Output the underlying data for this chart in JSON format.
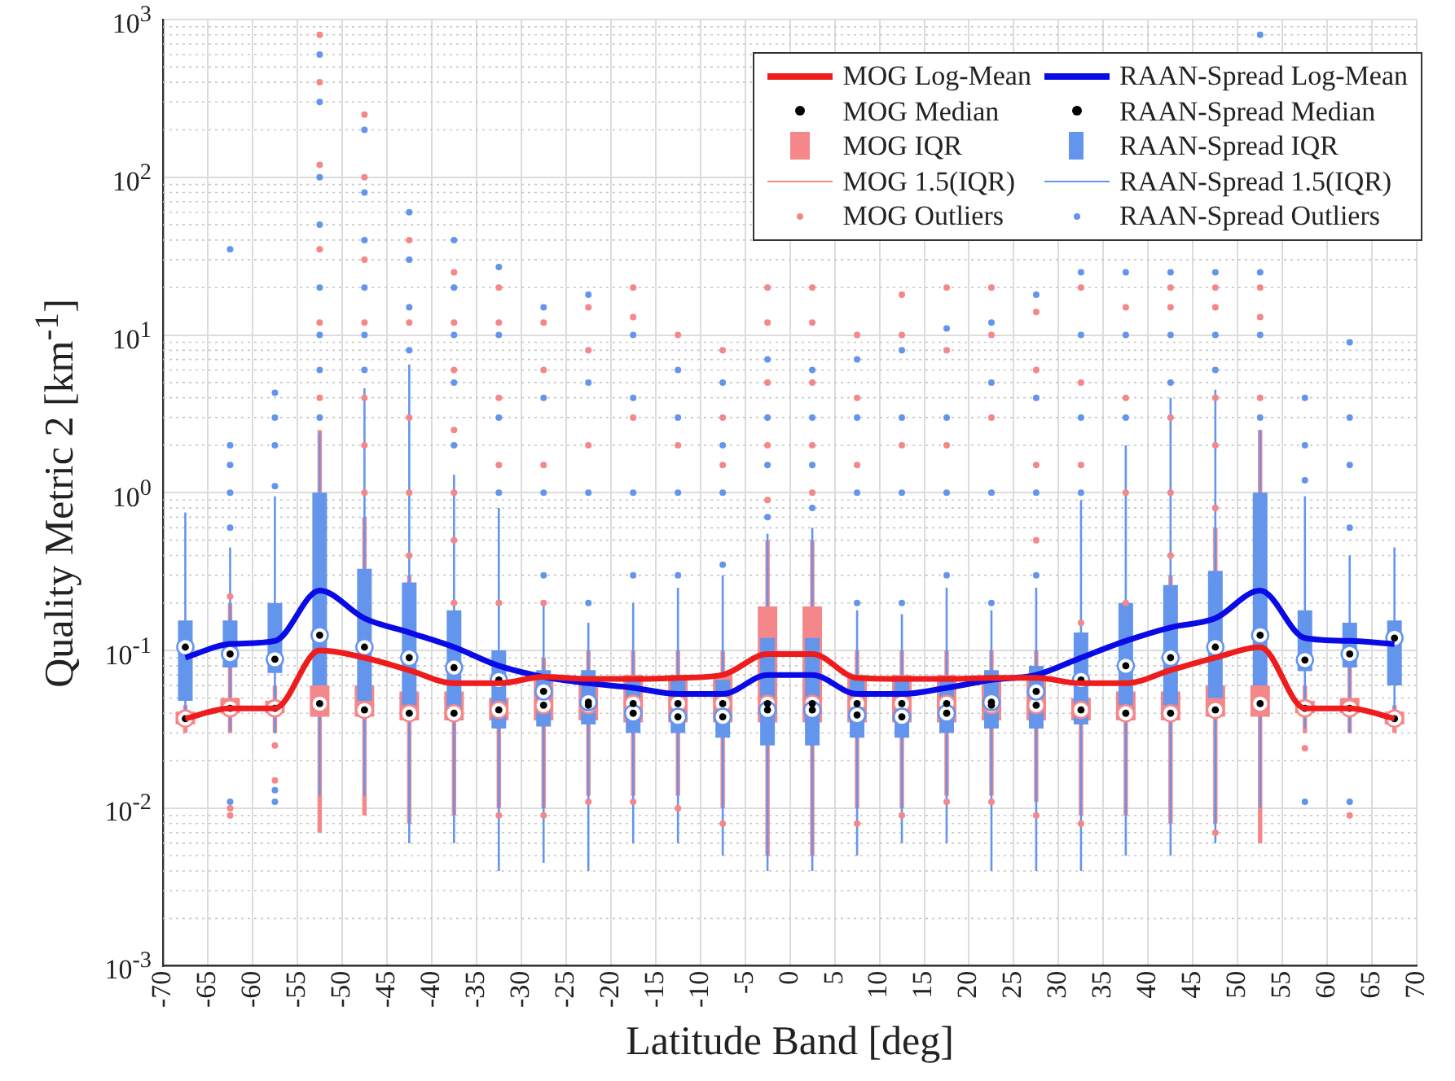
{
  "chart_data": {
    "type": "box",
    "xlabel": "Latitude Band [deg]",
    "ylabel": "Quality Metric 2 [km$^{-1}$]",
    "x": [
      -67.5,
      -62.5,
      -57.5,
      -52.5,
      -47.5,
      -42.5,
      -37.5,
      -32.5,
      -27.5,
      -22.5,
      -17.5,
      -12.5,
      -7.5,
      -2.5,
      2.5,
      7.5,
      12.5,
      17.5,
      22.5,
      27.5,
      32.5,
      37.5,
      42.5,
      47.5,
      52.5,
      57.5,
      62.5,
      67.5
    ],
    "xlim": [
      -70,
      70
    ],
    "xticks": [
      -70,
      -65,
      -60,
      -55,
      -50,
      -45,
      -40,
      -35,
      -30,
      -25,
      -20,
      -15,
      -10,
      -5,
      0,
      5,
      10,
      15,
      20,
      25,
      30,
      35,
      40,
      45,
      50,
      55,
      60,
      65,
      70
    ],
    "log": "y",
    "ylim": [
      0.001,
      1000
    ],
    "yticks": [
      {
        "value": 0.001,
        "label": "10$^{-3}$"
      },
      {
        "value": 0.01,
        "label": "10$^{-2}$"
      },
      {
        "value": 0.1,
        "label": "10$^{-1}$"
      },
      {
        "value": 1,
        "label": "10$^{0}$"
      },
      {
        "value": 10,
        "label": "10$^{1}$"
      },
      {
        "value": 100,
        "label": "10$^{2}$"
      },
      {
        "value": 1000,
        "label": "10$^{3}$"
      }
    ],
    "grid": true,
    "legend": "top right",
    "annotations": [
      "MOG Median",
      "RAAN-Spread Median",
      "MOG 1.5(IQR)",
      "RAAN-Spread 1.5(IQR)"
    ],
    "series": [
      {
        "name": "MOG Log-Mean",
        "type": "line",
        "color": "#ee1c1c",
        "values": [
          0.037,
          0.043,
          0.043,
          0.1,
          0.09,
          0.075,
          0.062,
          0.062,
          0.068,
          0.066,
          0.066,
          0.067,
          0.07,
          0.095,
          0.095,
          0.067,
          0.066,
          0.066,
          0.067,
          0.067,
          0.062,
          0.062,
          0.075,
          0.09,
          0.105,
          0.043,
          0.043,
          0.037
        ]
      },
      {
        "name": "RAAN-Spread Log-Mean",
        "type": "line",
        "color": "#0a0ae6",
        "values": [
          0.09,
          0.11,
          0.115,
          0.24,
          0.16,
          0.13,
          0.105,
          0.08,
          0.068,
          0.062,
          0.058,
          0.053,
          0.053,
          0.07,
          0.07,
          0.053,
          0.053,
          0.058,
          0.065,
          0.07,
          0.09,
          0.115,
          0.14,
          0.16,
          0.24,
          0.12,
          0.115,
          0.11
        ]
      },
      {
        "name": "MOG IQR",
        "type": "box",
        "color": "#f4878a",
        "boxes": [
          {
            "low": 0.03,
            "q1": 0.034,
            "median": 0.037,
            "q3": 0.041,
            "high": 0.045
          },
          {
            "low": 0.03,
            "q1": 0.04,
            "median": 0.043,
            "q3": 0.05,
            "high": 0.2
          },
          {
            "low": 0.03,
            "q1": 0.04,
            "median": 0.043,
            "q3": 0.048,
            "high": 0.06
          },
          {
            "low": 0.007,
            "q1": 0.038,
            "median": 0.046,
            "q3": 0.06,
            "high": 2.5
          },
          {
            "low": 0.009,
            "q1": 0.038,
            "median": 0.042,
            "q3": 0.06,
            "high": 0.7
          },
          {
            "low": 0.008,
            "q1": 0.036,
            "median": 0.04,
            "q3": 0.055,
            "high": 0.3
          },
          {
            "low": 0.009,
            "q1": 0.036,
            "median": 0.04,
            "q3": 0.055,
            "high": 0.15
          },
          {
            "low": 0.01,
            "q1": 0.036,
            "median": 0.042,
            "q3": 0.05,
            "high": 0.06
          },
          {
            "low": 0.01,
            "q1": 0.036,
            "median": 0.045,
            "q3": 0.065,
            "high": 0.09
          },
          {
            "low": 0.012,
            "q1": 0.036,
            "median": 0.045,
            "q3": 0.065,
            "high": 0.1
          },
          {
            "low": 0.012,
            "q1": 0.035,
            "median": 0.046,
            "q3": 0.07,
            "high": 0.1
          },
          {
            "low": 0.012,
            "q1": 0.035,
            "median": 0.046,
            "q3": 0.07,
            "high": 0.1
          },
          {
            "low": 0.01,
            "q1": 0.035,
            "median": 0.046,
            "q3": 0.07,
            "high": 0.1
          },
          {
            "low": 0.005,
            "q1": 0.035,
            "median": 0.046,
            "q3": 0.19,
            "high": 0.5
          },
          {
            "low": 0.005,
            "q1": 0.035,
            "median": 0.046,
            "q3": 0.19,
            "high": 0.5
          },
          {
            "low": 0.01,
            "q1": 0.035,
            "median": 0.046,
            "q3": 0.07,
            "high": 0.1
          },
          {
            "low": 0.01,
            "q1": 0.035,
            "median": 0.046,
            "q3": 0.07,
            "high": 0.1
          },
          {
            "low": 0.012,
            "q1": 0.035,
            "median": 0.046,
            "q3": 0.07,
            "high": 0.1
          },
          {
            "low": 0.012,
            "q1": 0.036,
            "median": 0.045,
            "q3": 0.065,
            "high": 0.1
          },
          {
            "low": 0.011,
            "q1": 0.036,
            "median": 0.045,
            "q3": 0.065,
            "high": 0.1
          },
          {
            "low": 0.009,
            "q1": 0.036,
            "median": 0.042,
            "q3": 0.05,
            "high": 0.08
          },
          {
            "low": 0.009,
            "q1": 0.036,
            "median": 0.04,
            "q3": 0.055,
            "high": 0.15
          },
          {
            "low": 0.008,
            "q1": 0.036,
            "median": 0.04,
            "q3": 0.055,
            "high": 0.3
          },
          {
            "low": 0.008,
            "q1": 0.038,
            "median": 0.042,
            "q3": 0.06,
            "high": 0.6
          },
          {
            "low": 0.006,
            "q1": 0.038,
            "median": 0.046,
            "q3": 0.06,
            "high": 2.5
          },
          {
            "low": 0.03,
            "q1": 0.04,
            "median": 0.043,
            "q3": 0.048,
            "high": 0.06
          },
          {
            "low": 0.03,
            "q1": 0.04,
            "median": 0.043,
            "q3": 0.05,
            "high": 0.08
          },
          {
            "low": 0.03,
            "q1": 0.034,
            "median": 0.037,
            "q3": 0.041,
            "high": 0.045
          }
        ]
      },
      {
        "name": "RAAN-Spread IQR",
        "type": "box",
        "color": "#6495ed",
        "boxes": [
          {
            "low": 0.034,
            "q1": 0.048,
            "median": 0.105,
            "q3": 0.155,
            "high": 0.75
          },
          {
            "low": 0.031,
            "q1": 0.078,
            "median": 0.095,
            "q3": 0.155,
            "high": 0.45
          },
          {
            "low": 0.03,
            "q1": 0.072,
            "median": 0.088,
            "q3": 0.2,
            "high": 0.95
          },
          {
            "low": 0.012,
            "q1": 0.06,
            "median": 0.125,
            "q3": 1,
            "high": 2.4
          },
          {
            "low": 0.012,
            "q1": 0.048,
            "median": 0.105,
            "q3": 0.33,
            "high": 4.6
          },
          {
            "low": 0.006,
            "q1": 0.045,
            "median": 0.09,
            "q3": 0.27,
            "high": 6.5
          },
          {
            "low": 0.006,
            "q1": 0.036,
            "median": 0.078,
            "q3": 0.18,
            "high": 1.3
          },
          {
            "low": 0.004,
            "q1": 0.032,
            "median": 0.065,
            "q3": 0.1,
            "high": 0.8
          },
          {
            "low": 0.0045,
            "q1": 0.033,
            "median": 0.055,
            "q3": 0.075,
            "high": 0.2
          },
          {
            "low": 0.004,
            "q1": 0.034,
            "median": 0.047,
            "q3": 0.075,
            "high": 0.15
          },
          {
            "low": 0.006,
            "q1": 0.03,
            "median": 0.04,
            "q3": 0.065,
            "high": 0.2
          },
          {
            "low": 0.006,
            "q1": 0.03,
            "median": 0.038,
            "q3": 0.065,
            "high": 0.25
          },
          {
            "low": 0.005,
            "q1": 0.028,
            "median": 0.038,
            "q3": 0.065,
            "high": 0.3
          },
          {
            "low": 0.004,
            "q1": 0.025,
            "median": 0.042,
            "q3": 0.12,
            "high": 0.55
          },
          {
            "low": 0.004,
            "q1": 0.025,
            "median": 0.042,
            "q3": 0.12,
            "high": 0.6
          },
          {
            "low": 0.005,
            "q1": 0.028,
            "median": 0.039,
            "q3": 0.065,
            "high": 0.18
          },
          {
            "low": 0.006,
            "q1": 0.028,
            "median": 0.038,
            "q3": 0.065,
            "high": 0.17
          },
          {
            "low": 0.006,
            "q1": 0.03,
            "median": 0.04,
            "q3": 0.065,
            "high": 0.25
          },
          {
            "low": 0.004,
            "q1": 0.032,
            "median": 0.047,
            "q3": 0.075,
            "high": 0.18
          },
          {
            "low": 0.004,
            "q1": 0.032,
            "median": 0.055,
            "q3": 0.08,
            "high": 0.25
          },
          {
            "low": 0.004,
            "q1": 0.034,
            "median": 0.065,
            "q3": 0.13,
            "high": 0.9
          },
          {
            "low": 0.005,
            "q1": 0.045,
            "median": 0.08,
            "q3": 0.2,
            "high": 2
          },
          {
            "low": 0.005,
            "q1": 0.045,
            "median": 0.09,
            "q3": 0.26,
            "high": 4
          },
          {
            "low": 0.006,
            "q1": 0.05,
            "median": 0.105,
            "q3": 0.32,
            "high": 4.5
          },
          {
            "low": 0.01,
            "q1": 0.06,
            "median": 0.125,
            "q3": 1,
            "high": 2.5
          },
          {
            "low": 0.032,
            "q1": 0.074,
            "median": 0.087,
            "q3": 0.18,
            "high": 0.95
          },
          {
            "low": 0.03,
            "q1": 0.078,
            "median": 0.095,
            "q3": 0.15,
            "high": 0.4
          },
          {
            "low": 0.035,
            "q1": 0.06,
            "median": 0.12,
            "q3": 0.155,
            "high": 0.45
          }
        ]
      },
      {
        "name": "MOG Outliers",
        "type": "scatter",
        "color": "#f4878a",
        "x": [
          -62.5,
          -62.5,
          -62.5,
          -57.5,
          -57.5,
          -52.5,
          -52.5,
          -52.5,
          -52.5,
          -52.5,
          -52.5,
          -47.5,
          -47.5,
          -47.5,
          -47.5,
          -47.5,
          -47.5,
          -47.5,
          -42.5,
          -42.5,
          -42.5,
          -42.5,
          -42.5,
          -37.5,
          -37.5,
          -37.5,
          -37.5,
          -37.5,
          -37.5,
          -37.5,
          -32.5,
          -32.5,
          -32.5,
          -32.5,
          -32.5,
          -32.5,
          -27.5,
          -27.5,
          -27.5,
          -27.5,
          -27.5,
          -22.5,
          -22.5,
          -22.5,
          -22.5,
          -17.5,
          -17.5,
          -17.5,
          -17.5,
          -12.5,
          -12.5,
          -12.5,
          -7.5,
          -7.5,
          -7.5,
          -7.5,
          -2.5,
          -2.5,
          -2.5,
          -2.5,
          -2.5,
          2.5,
          2.5,
          2.5,
          2.5,
          2.5,
          7.5,
          7.5,
          7.5,
          7.5,
          12.5,
          12.5,
          12.5,
          12.5,
          17.5,
          17.5,
          17.5,
          17.5,
          22.5,
          22.5,
          22.5,
          22.5,
          27.5,
          27.5,
          27.5,
          27.5,
          27.5,
          32.5,
          32.5,
          32.5,
          32.5,
          32.5,
          37.5,
          37.5,
          37.5,
          37.5,
          42.5,
          42.5,
          42.5,
          42.5,
          42.5,
          47.5,
          47.5,
          47.5,
          47.5,
          47.5,
          47.5,
          52.5,
          52.5,
          52.5,
          57.5,
          62.5
        ],
        "values": [
          0.009,
          0.01,
          0.22,
          0.015,
          0.025,
          4,
          12,
          35,
          120,
          400,
          800,
          1,
          2,
          4,
          12,
          30,
          100,
          250,
          0.4,
          1,
          3,
          12,
          40,
          0.2,
          0.5,
          1,
          2.5,
          6,
          12,
          25,
          0.009,
          0.2,
          1.5,
          4,
          12,
          20,
          0.009,
          0.2,
          1.5,
          6,
          12,
          0.011,
          2,
          8,
          15,
          0.011,
          3,
          13,
          20,
          0.01,
          2,
          10,
          0.008,
          1.5,
          3,
          8,
          0.9,
          2,
          5,
          12,
          20,
          1,
          2,
          5,
          12,
          20,
          0.008,
          1.5,
          4,
          10,
          0.009,
          2,
          10,
          18,
          0.011,
          2,
          8,
          20,
          0.011,
          3,
          10,
          20,
          0.009,
          0.5,
          1.5,
          6,
          14,
          0.008,
          0.15,
          1.5,
          5,
          20,
          0.2,
          1,
          4,
          15,
          0.4,
          1,
          3,
          15,
          20,
          0.007,
          0.8,
          2,
          4,
          15,
          20,
          4,
          13,
          20,
          0.024,
          0.009
        ]
      },
      {
        "name": "RAAN-Spread Outliers",
        "type": "scatter",
        "color": "#6495ed",
        "x": [
          -62.5,
          -62.5,
          -62.5,
          -62.5,
          -62.5,
          -62.5,
          -57.5,
          -57.5,
          -57.5,
          -57.5,
          -57.5,
          -57.5,
          -52.5,
          -52.5,
          -52.5,
          -52.5,
          -52.5,
          -52.5,
          -52.5,
          -52.5,
          -47.5,
          -47.5,
          -47.5,
          -47.5,
          -47.5,
          -47.5,
          -42.5,
          -42.5,
          -42.5,
          -42.5,
          -37.5,
          -37.5,
          -37.5,
          -37.5,
          -37.5,
          -32.5,
          -32.5,
          -32.5,
          -32.5,
          -27.5,
          -27.5,
          -27.5,
          -27.5,
          -22.5,
          -22.5,
          -22.5,
          -22.5,
          -17.5,
          -17.5,
          -17.5,
          -17.5,
          -12.5,
          -12.5,
          -12.5,
          -12.5,
          -7.5,
          -7.5,
          -7.5,
          -7.5,
          -2.5,
          -2.5,
          -2.5,
          -2.5,
          2.5,
          2.5,
          2.5,
          2.5,
          7.5,
          7.5,
          7.5,
          7.5,
          12.5,
          12.5,
          12.5,
          12.5,
          17.5,
          17.5,
          17.5,
          17.5,
          22.5,
          22.5,
          22.5,
          22.5,
          27.5,
          27.5,
          27.5,
          27.5,
          32.5,
          32.5,
          32.5,
          32.5,
          37.5,
          37.5,
          37.5,
          42.5,
          42.5,
          42.5,
          47.5,
          47.5,
          47.5,
          52.5,
          52.5,
          52.5,
          52.5,
          57.5,
          57.5,
          57.5,
          57.5,
          62.5,
          62.5,
          62.5,
          62.5,
          62.5
        ],
        "values": [
          0.011,
          0.6,
          1,
          1.5,
          2,
          35,
          0.011,
          0.013,
          1.1,
          2,
          3,
          4.3,
          3,
          6,
          10,
          20,
          50,
          100,
          300,
          600,
          6,
          10,
          20,
          40,
          80,
          200,
          8,
          15,
          30,
          60,
          2,
          5,
          10,
          20,
          40,
          1,
          3,
          10,
          27,
          0.3,
          1,
          4,
          15,
          0.2,
          1,
          5,
          18,
          0.3,
          1,
          4,
          10,
          0.3,
          1,
          3,
          6,
          0.35,
          1,
          2,
          5,
          0.7,
          1.5,
          3,
          7,
          0.8,
          1.5,
          3,
          6,
          0.2,
          1,
          3,
          7,
          0.2,
          1,
          3,
          8,
          0.3,
          1,
          3,
          11,
          0.2,
          1,
          5,
          12,
          0.3,
          1,
          4,
          18,
          1,
          3,
          10,
          25,
          3,
          10,
          25,
          5,
          10,
          25,
          6,
          10,
          25,
          3,
          10,
          25,
          800,
          0.011,
          1.2,
          2,
          4,
          0.011,
          0.6,
          1.5,
          3,
          9
        ]
      }
    ]
  }
}
